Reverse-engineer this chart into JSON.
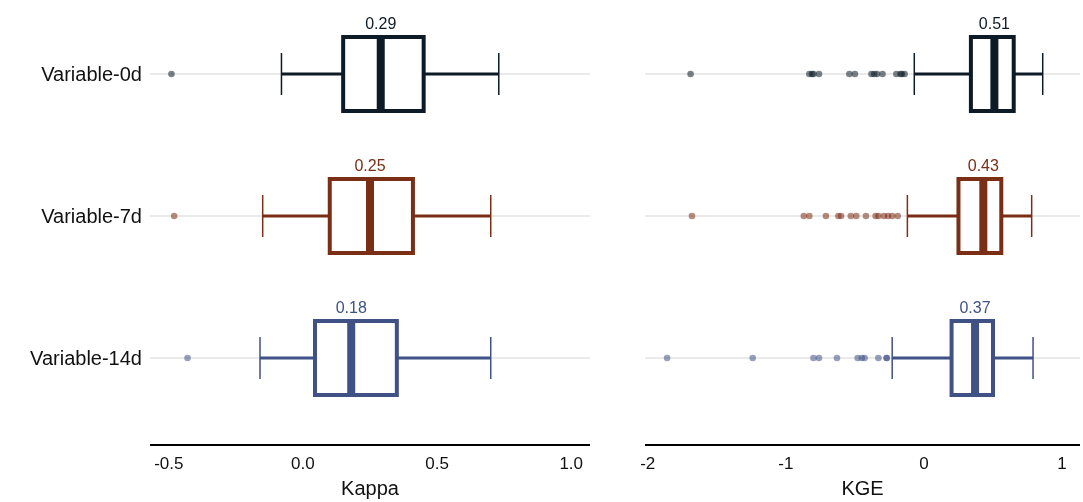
{
  "chart_data": [
    {
      "type": "box",
      "orientation": "horizontal",
      "categories": [
        "Variable-0d",
        "Variable-7d",
        "Variable-14d"
      ],
      "xlabel": "Kappa",
      "xlim": [
        -0.57,
        1.07
      ],
      "xticks": [
        -0.5,
        {
          "value": 0,
          "label": "0.0"
        },
        0.5,
        {
          "value": 1,
          "label": "1.0"
        }
      ],
      "grid": "y",
      "value_labels": [
        "0.29",
        "0.25",
        "0.18"
      ],
      "colors": [
        "#0d1b26",
        "#7a2e16",
        "#3f5185"
      ],
      "boxes": [
        {
          "low": -0.08,
          "q1": 0.15,
          "median": 0.29,
          "q3": 0.45,
          "high": 0.73,
          "outliers": [
            -0.49
          ]
        },
        {
          "low": -0.15,
          "q1": 0.1,
          "median": 0.25,
          "q3": 0.41,
          "high": 0.7,
          "outliers": [
            -0.48
          ]
        },
        {
          "low": -0.16,
          "q1": 0.045,
          "median": 0.18,
          "q3": 0.35,
          "high": 0.7,
          "outliers": [
            -0.43
          ]
        }
      ]
    },
    {
      "type": "box",
      "orientation": "horizontal",
      "categories": [
        null,
        null,
        null
      ],
      "xlabel": "KGE",
      "xlim": [
        -2.02,
        1.13
      ],
      "xticks": [
        -2,
        -1,
        0,
        1
      ],
      "grid": "y",
      "value_labels": [
        "0.51",
        "0.43",
        "0.37"
      ],
      "tick_labels": "x",
      "colors": [
        "#0d1b26",
        "#7a2e16",
        "#3f5185"
      ],
      "boxes": [
        {
          "low": -0.07,
          "q1": 0.34,
          "median": 0.51,
          "q3": 0.65,
          "high": 0.86,
          "outliers": [
            -1.69,
            -0.83,
            -0.81,
            -0.8,
            -0.76,
            -0.54,
            -0.5,
            -0.38,
            -0.36,
            -0.34,
            -0.3,
            -0.2,
            -0.17,
            -0.16,
            -0.14
          ]
        },
        {
          "low": -0.12,
          "q1": 0.25,
          "median": 0.43,
          "q3": 0.56,
          "high": 0.78,
          "outliers": [
            -1.68,
            -0.87,
            -0.83,
            -0.71,
            -0.62,
            -0.6,
            -0.53,
            -0.49,
            -0.42,
            -0.35,
            -0.33,
            -0.29,
            -0.26,
            -0.23,
            -0.19
          ]
        },
        {
          "low": -0.23,
          "q1": 0.2,
          "median": 0.37,
          "q3": 0.5,
          "high": 0.79,
          "outliers": [
            -1.86,
            -1.24,
            -0.8,
            -0.76,
            -0.63,
            -0.48,
            -0.45,
            -0.43,
            -0.33,
            -0.27,
            -0.27
          ]
        }
      ]
    }
  ]
}
